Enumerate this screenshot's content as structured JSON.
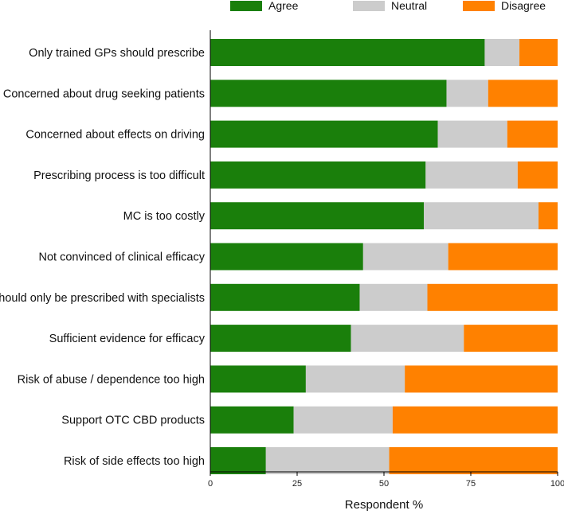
{
  "chart_data": {
    "type": "bar",
    "orientation": "horizontal",
    "stacked": true,
    "title": "",
    "xlabel": "Respondent %",
    "ylabel": "",
    "xlim": [
      0,
      100
    ],
    "xticks": [
      "0",
      "25",
      "50",
      "75",
      "100"
    ],
    "grid": false,
    "legend_position": "top",
    "categories": [
      "Only trained GPs should prescribe",
      "Concerned about drug seeking patients",
      "Concerned about effects on driving",
      "Prescribing process is too difficult",
      "MC is too costly",
      "Not convinced of clinical efficacy",
      "Should only be prescribed with specialists",
      "Sufficient evidence for efficacy",
      "Risk of abuse / dependence too high",
      "Support OTC CBD products",
      "Risk of side effects too high"
    ],
    "series": [
      {
        "name": "Agree",
        "color": "#1a7f0b",
        "values": [
          79,
          68,
          65.5,
          62,
          61.5,
          44,
          43,
          40.5,
          27.5,
          24,
          16
        ]
      },
      {
        "name": "Neutral",
        "color": "#cccccc",
        "values": [
          10,
          12,
          20,
          26.5,
          33,
          24.5,
          19.5,
          32.5,
          28.5,
          28.5,
          35.5
        ]
      },
      {
        "name": "Disagree",
        "color": "#ff8100",
        "values": [
          11,
          20,
          14.5,
          11.5,
          5.5,
          31.5,
          37.5,
          27,
          44,
          47.5,
          48.5
        ]
      }
    ]
  }
}
